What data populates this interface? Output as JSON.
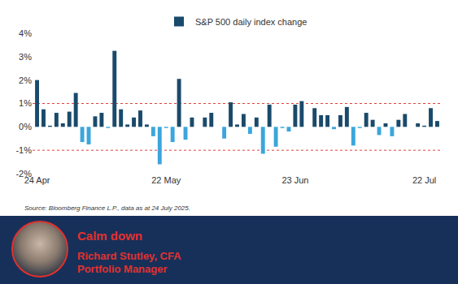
{
  "chart_data": {
    "type": "bar",
    "categories": [
      "24 Apr",
      null,
      null,
      null,
      null,
      null,
      null,
      null,
      null,
      null,
      null,
      null,
      null,
      null,
      null,
      null,
      null,
      null,
      null,
      null,
      "22 May",
      null,
      null,
      null,
      null,
      null,
      null,
      null,
      null,
      null,
      null,
      null,
      null,
      null,
      null,
      null,
      null,
      null,
      null,
      null,
      "23 Jun",
      null,
      null,
      null,
      null,
      null,
      null,
      null,
      null,
      null,
      null,
      null,
      null,
      null,
      null,
      null,
      null,
      null,
      null,
      null,
      "22 Jul",
      null,
      null
    ],
    "series": [
      {
        "name": "S&P 500 daily index change",
        "color": "#1a4a6b",
        "values": [
          2.0,
          0.75,
          0.05,
          0.6,
          0.15,
          0.65,
          1.45,
          -0.65,
          -0.75,
          0.45,
          0.6,
          -0.05,
          3.25,
          0.75,
          0.1,
          0.4,
          0.7,
          0.1,
          -0.4,
          -1.6,
          -0.05,
          -0.65,
          2.05,
          -0.55,
          0.4,
          0.0,
          0.4,
          0.6,
          0.0,
          -0.5,
          1.05,
          0.1,
          0.55,
          -0.3,
          0.4,
          -1.15,
          0.95,
          -0.85,
          -0.05,
          -0.2,
          0.95,
          1.1,
          0.0,
          0.8,
          0.5,
          0.5,
          -0.1,
          0.5,
          0.85,
          -0.8,
          -0.05,
          0.6,
          0.3,
          -0.35,
          0.15,
          -0.4,
          0.3,
          0.55,
          0.0,
          0.15,
          0.05,
          0.8,
          0.25
        ],
        "colors": [
          "#1a4a6b",
          "#1a4a6b",
          "#1a4a6b",
          "#1a4a6b",
          "#1a4a6b",
          "#1a4a6b",
          "#1a4a6b",
          "#3ba6dc",
          "#3ba6dc",
          "#1a4a6b",
          "#1a4a6b",
          "#3ba6dc",
          "#1a4a6b",
          "#1a4a6b",
          "#1a4a6b",
          "#1a4a6b",
          "#1a4a6b",
          "#1a4a6b",
          "#3ba6dc",
          "#3ba6dc",
          "#3ba6dc",
          "#3ba6dc",
          "#1a4a6b",
          "#3ba6dc",
          "#1a4a6b",
          "#1a4a6b",
          "#1a4a6b",
          "#1a4a6b",
          "#1a4a6b",
          "#3ba6dc",
          "#1a4a6b",
          "#1a4a6b",
          "#1a4a6b",
          "#3ba6dc",
          "#1a4a6b",
          "#3ba6dc",
          "#1a4a6b",
          "#3ba6dc",
          "#3ba6dc",
          "#3ba6dc",
          "#1a4a6b",
          "#1a4a6b",
          "#1a4a6b",
          "#1a4a6b",
          "#1a4a6b",
          "#1a4a6b",
          "#3ba6dc",
          "#1a4a6b",
          "#1a4a6b",
          "#3ba6dc",
          "#3ba6dc",
          "#1a4a6b",
          "#1a4a6b",
          "#3ba6dc",
          "#1a4a6b",
          "#3ba6dc",
          "#1a4a6b",
          "#1a4a6b",
          "#1a4a6b",
          "#1a4a6b",
          "#1a4a6b",
          "#1a4a6b",
          "#1a4a6b"
        ]
      }
    ],
    "ylim": [
      -2,
      4
    ],
    "yticks": [
      {
        "value": -2,
        "label": "-2%"
      },
      {
        "value": -1,
        "label": "-1%"
      },
      {
        "value": 0,
        "label": "0%"
      },
      {
        "value": 1,
        "label": "1%"
      },
      {
        "value": 2,
        "label": "2%"
      },
      {
        "value": 3,
        "label": "3%"
      },
      {
        "value": 4,
        "label": "4%"
      }
    ],
    "reference_lines": [
      {
        "value": 1,
        "color": "#e0403a",
        "line_style": "dotted"
      },
      {
        "value": -1,
        "color": "#e0403a",
        "line_style": "dotted"
      }
    ],
    "grid": false,
    "legend": "top"
  },
  "source": "Source: Bloomberg Finance L.P., data as at 24 July 2025.",
  "footer": {
    "title": "Calm down",
    "name": "Richard Stutley, CFA",
    "role": "Portfolio Manager"
  }
}
